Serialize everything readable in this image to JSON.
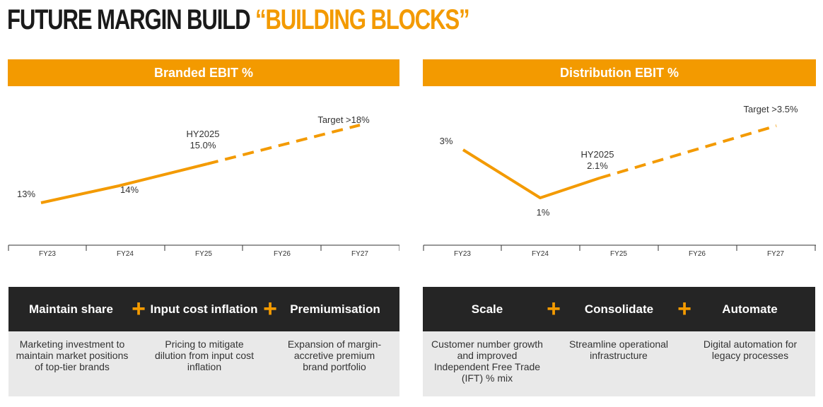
{
  "title": {
    "part1": "FUTURE MARGIN BUILD ",
    "part2": "“BUILDING BLOCKS”"
  },
  "colors": {
    "accent": "#f39a00",
    "dark": "#252525",
    "light_panel": "#e9e9e9"
  },
  "chart_data": [
    {
      "type": "line",
      "title": "Branded EBIT %",
      "categories": [
        "FY23",
        "FY24",
        "FY25",
        "FY26",
        "FY27"
      ],
      "series": [
        {
          "style": "solid",
          "points": [
            {
              "x": "FY23",
              "y": 13,
              "label": "13%"
            },
            {
              "x": "FY24",
              "y": 14,
              "label": "14%"
            },
            {
              "x": "HY2025",
              "y": 15.0,
              "label": "HY2025\n15.0%"
            }
          ]
        },
        {
          "style": "dashed",
          "points": [
            {
              "x": "HY2025",
              "y": 15.0
            },
            {
              "x": "FY27",
              "y": 18,
              "label": "Target >18%"
            }
          ]
        }
      ],
      "grid": false,
      "legend": "none"
    },
    {
      "type": "line",
      "title": "Distribution EBIT %",
      "categories": [
        "FY23",
        "FY24",
        "FY25",
        "FY26",
        "FY27"
      ],
      "series": [
        {
          "style": "solid",
          "points": [
            {
              "x": "FY23",
              "y": 3,
              "label": "3%"
            },
            {
              "x": "FY24",
              "y": 1,
              "label": "1%"
            },
            {
              "x": "HY2025",
              "y": 2.1,
              "label": "HY2025\n2.1%"
            }
          ]
        },
        {
          "style": "dashed",
          "points": [
            {
              "x": "HY2025",
              "y": 2.1
            },
            {
              "x": "FY27",
              "y": 3.5,
              "label": "Target >3.5%"
            }
          ]
        }
      ],
      "grid": false,
      "legend": "none"
    }
  ],
  "labels": {
    "branded": [
      "13%",
      "14%",
      "HY2025",
      "15.0%",
      "Target >18%"
    ],
    "distribution": [
      "3%",
      "1%",
      "HY2025",
      "2.1%",
      "Target >3.5%"
    ]
  },
  "blocks": {
    "left": {
      "items": [
        {
          "heading": "Maintain share",
          "desc": "Marketing investment to maintain market positions of top-tier brands"
        },
        {
          "heading": "Input cost inflation",
          "desc": "Pricing to mitigate dilution from input cost inflation"
        },
        {
          "heading": "Premiumisation",
          "desc": "Expansion of margin-accretive premium brand portfolio"
        }
      ]
    },
    "right": {
      "items": [
        {
          "heading": "Scale",
          "desc": "Customer number growth and improved Independent Free Trade (IFT)  % mix"
        },
        {
          "heading": "Consolidate",
          "desc": "Streamline operational infrastructure"
        },
        {
          "heading": "Automate",
          "desc": "Digital automation for legacy processes"
        }
      ]
    },
    "plus": "+"
  }
}
